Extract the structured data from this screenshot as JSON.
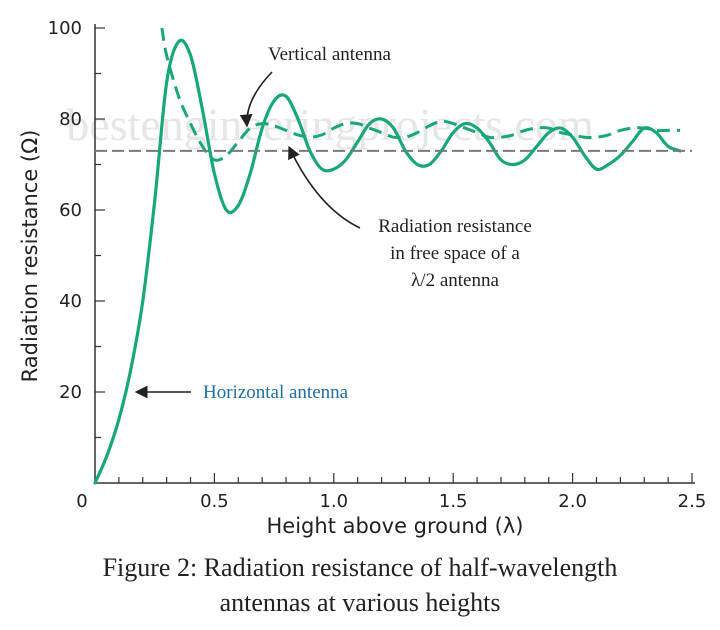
{
  "chart_data": {
    "type": "line",
    "title": "",
    "xlabel": "Height above ground (λ)",
    "ylabel": "Radiation resistance (Ω)",
    "xlim": [
      0,
      2.5
    ],
    "ylim": [
      0,
      100
    ],
    "x_ticks": [
      0,
      0.5,
      1.0,
      1.5,
      2.0,
      2.5
    ],
    "x_tick_labels": [
      "0",
      "0.5",
      "1.0",
      "1.5",
      "2.0",
      "2.5"
    ],
    "y_ticks": [
      20,
      40,
      60,
      80,
      100
    ],
    "y_tick_labels": [
      "20",
      "40",
      "60",
      "80",
      "100"
    ],
    "series": [
      {
        "name": "Horizontal antenna",
        "style": "solid",
        "x": [
          0,
          0.05,
          0.1,
          0.15,
          0.2,
          0.25,
          0.3,
          0.35,
          0.4,
          0.45,
          0.5,
          0.55,
          0.6,
          0.65,
          0.7,
          0.75,
          0.8,
          0.85,
          0.9,
          0.95,
          1.0,
          1.05,
          1.1,
          1.15,
          1.2,
          1.25,
          1.3,
          1.35,
          1.4,
          1.45,
          1.5,
          1.55,
          1.6,
          1.65,
          1.7,
          1.75,
          1.8,
          1.85,
          1.9,
          1.95,
          2.0,
          2.05,
          2.1,
          2.15,
          2.2,
          2.25,
          2.3,
          2.35,
          2.4,
          2.45
        ],
        "values": [
          0,
          6,
          14,
          25,
          40,
          62,
          88,
          97,
          94,
          82,
          68,
          60,
          61,
          68,
          78,
          84,
          85,
          80,
          73,
          69,
          69,
          71,
          75,
          79,
          80,
          78,
          73,
          70,
          70,
          73,
          77,
          79,
          78,
          75,
          71,
          70,
          71,
          74,
          77,
          78,
          76,
          72,
          69,
          70,
          72,
          75,
          78,
          77,
          74,
          73
        ]
      },
      {
        "name": "Vertical antenna",
        "style": "dashed",
        "x": [
          0.28,
          0.3,
          0.35,
          0.4,
          0.45,
          0.5,
          0.55,
          0.6,
          0.65,
          0.7,
          0.75,
          0.8,
          0.85,
          0.9,
          0.95,
          1.0,
          1.05,
          1.1,
          1.15,
          1.2,
          1.25,
          1.3,
          1.35,
          1.4,
          1.45,
          1.5,
          1.55,
          1.6,
          1.65,
          1.7,
          1.75,
          1.8,
          1.85,
          1.9,
          1.95,
          2.0,
          2.05,
          2.1,
          2.15,
          2.2,
          2.25,
          2.3,
          2.35,
          2.4,
          2.45
        ],
        "values": [
          100,
          94,
          85,
          79,
          74,
          71,
          72,
          75,
          78,
          79,
          78.5,
          77.5,
          76.5,
          76,
          76.5,
          78,
          79,
          79,
          78,
          77,
          76,
          76,
          77,
          78.5,
          79.5,
          79,
          78,
          77,
          76,
          76,
          76.5,
          77.5,
          78,
          78,
          77,
          76.5,
          76,
          76,
          76.5,
          77.5,
          78,
          78,
          77.5,
          77.5,
          77.5
        ]
      },
      {
        "name": "Radiation resistance in free space of a λ/2 antenna",
        "style": "reference",
        "x": [
          0,
          2.5
        ],
        "values": [
          73,
          73
        ]
      }
    ],
    "annotations": [
      {
        "id": "vertical",
        "text": "Vertical antenna",
        "lines": [
          "Vertical antenna"
        ],
        "color": "#222222"
      },
      {
        "id": "freespace",
        "text": "Radiation resistance in free space of a λ/2 antenna",
        "lines": [
          "Radiation resistance",
          "in free space of a",
          "λ/2 antenna"
        ],
        "color": "#222222"
      },
      {
        "id": "horizontal",
        "text": "Horizontal antenna",
        "lines": [
          "Horizontal antenna"
        ],
        "color": "#1d6fa8"
      }
    ],
    "watermark": "bestengineeringprojects.com"
  },
  "caption": {
    "line1": "Figure 2: Radiation resistance of half-wavelength",
    "line2": "antennas at various heights"
  },
  "colors": {
    "curve": "#17a87a",
    "reference": "#7a7a7a",
    "axis": "#333333",
    "text": "#222222",
    "watermark": "#e6e6e6"
  }
}
